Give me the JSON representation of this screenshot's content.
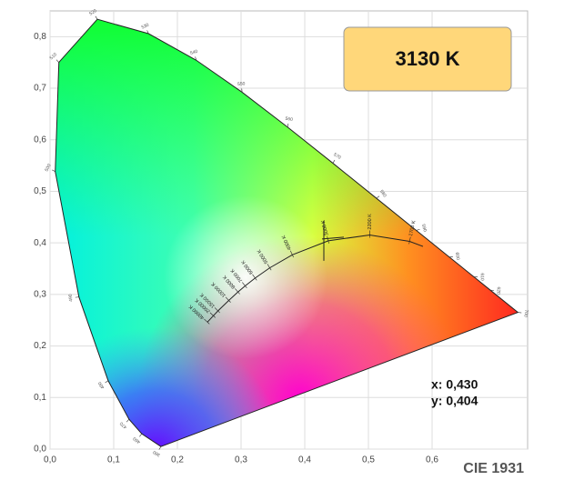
{
  "chart_data": {
    "type": "chromaticity",
    "title": "CIE 1931",
    "cct_label": "3130 K",
    "point": {
      "x": 0.43,
      "y": 0.404,
      "x_label": "x: 0,430",
      "y_label": "y: 0,404"
    },
    "xlim": [
      0,
      0.75
    ],
    "ylim": [
      0,
      0.85
    ],
    "xticks": [
      {
        "value": 0,
        "label": "0,0"
      },
      {
        "value": 0.1,
        "label": "0,1"
      },
      {
        "value": 0.2,
        "label": "0,2"
      },
      {
        "value": 0.3,
        "label": "0,3"
      },
      {
        "value": 0.4,
        "label": "0,4"
      },
      {
        "value": 0.5,
        "label": "0,5"
      },
      {
        "value": 0.6,
        "label": "0,6"
      }
    ],
    "yticks": [
      {
        "value": 0,
        "label": "0,0"
      },
      {
        "value": 0.1,
        "label": "0,1"
      },
      {
        "value": 0.2,
        "label": "0,2"
      },
      {
        "value": 0.3,
        "label": "0,3"
      },
      {
        "value": 0.4,
        "label": "0,4"
      },
      {
        "value": 0.5,
        "label": "0,5"
      },
      {
        "value": 0.6,
        "label": "0,6"
      },
      {
        "value": 0.7,
        "label": "0,7"
      },
      {
        "value": 0.8,
        "label": "0,8"
      }
    ],
    "grid": true,
    "spectral_locus": {
      "wavelengths": [
        380,
        460,
        470,
        480,
        490,
        500,
        510,
        520,
        530,
        540,
        550,
        560,
        570,
        580,
        590,
        600,
        610,
        620,
        700
      ],
      "x": [
        0.1741,
        0.144,
        0.1241,
        0.0913,
        0.0454,
        0.0082,
        0.0139,
        0.0743,
        0.1547,
        0.2296,
        0.3016,
        0.3731,
        0.4441,
        0.5125,
        0.5752,
        0.627,
        0.6658,
        0.6915,
        0.7347
      ],
      "y": [
        0.005,
        0.0297,
        0.0578,
        0.1327,
        0.295,
        0.5384,
        0.7502,
        0.8338,
        0.8059,
        0.7543,
        0.6923,
        0.6245,
        0.5547,
        0.4866,
        0.4242,
        0.3725,
        0.334,
        0.3083,
        0.2653
      ]
    },
    "planckian_locus": {
      "labels": [
        null,
        "1700 K",
        "2200 K",
        "3000 K",
        "4000 K",
        "5000 K",
        "6000 K",
        "7000 K",
        "8000 K",
        "10000 K",
        "15000 K",
        "20000 K",
        "40000 K"
      ],
      "x": [
        0.5857,
        0.5646,
        0.502,
        0.4369,
        0.3805,
        0.3451,
        0.3221,
        0.3064,
        0.2952,
        0.2807,
        0.2637,
        0.2565,
        0.2472
      ],
      "y": [
        0.3931,
        0.4029,
        0.4152,
        0.4041,
        0.3768,
        0.3516,
        0.3318,
        0.3166,
        0.3048,
        0.2884,
        0.2681,
        0.2587,
        0.2463
      ]
    }
  }
}
